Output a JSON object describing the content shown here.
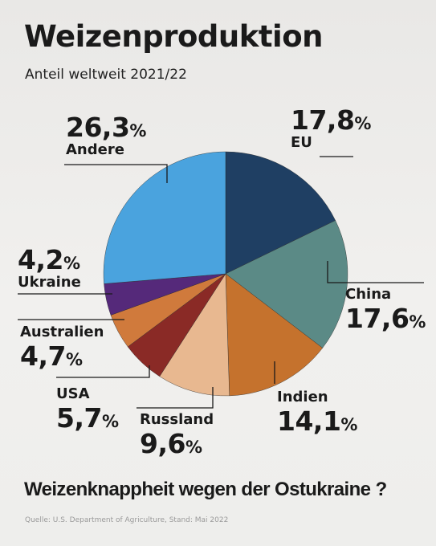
{
  "title": "Weizenproduktion",
  "subtitle": "Anteil weltweit 2021/22",
  "headline": "Weizenknappheit wegen der Ostukraine ?",
  "source": "Quelle: U.S. Department of Agriculture, Stand: Mai 2022",
  "chart_data": {
    "type": "pie",
    "title": "Weizenproduktion",
    "subtitle": "Anteil weltweit 2021/22",
    "unit": "%",
    "slices": [
      {
        "name": "EU",
        "value": 17.8,
        "label": "17,8",
        "color": "#1f3f63"
      },
      {
        "name": "China",
        "value": 17.6,
        "label": "17,6",
        "color": "#5b8a86"
      },
      {
        "name": "Indien",
        "value": 14.1,
        "label": "14,1",
        "color": "#c5722d"
      },
      {
        "name": "Russland",
        "value": 9.6,
        "label": "9,6",
        "color": "#e8b890"
      },
      {
        "name": "USA",
        "value": 5.7,
        "label": "5,7",
        "color": "#8a2a26"
      },
      {
        "name": "Australien",
        "value": 4.7,
        "label": "4,7",
        "color": "#d07a3c"
      },
      {
        "name": "Ukraine",
        "value": 4.2,
        "label": "4,2",
        "color": "#55297a"
      },
      {
        "name": "Andere",
        "value": 26.3,
        "label": "26,3",
        "color": "#4aa3de"
      }
    ]
  }
}
